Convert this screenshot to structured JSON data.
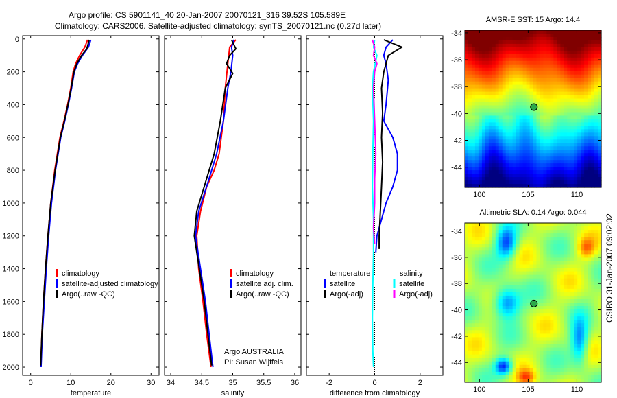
{
  "title": {
    "line1": "Argo profile: CS 5901141_40 20-Jan-2007 20070121_316 39.52S 105.589E",
    "line2": "Climatology: CARS2006. Satellite-adjusted climatology: synTS_20070121.nc (0.27d later)"
  },
  "colors": {
    "climatology": "#ff0000",
    "satellite": "#0000ff",
    "argo": "#000000",
    "sal_satellite": "#00ffff",
    "sal_argo": "#ff00ff"
  },
  "chart_data": [
    {
      "type": "line",
      "id": "temperature",
      "xlabel": "temperature",
      "ylabel": "",
      "xlim": [
        -2,
        32
      ],
      "ylim": [
        2050,
        -20
      ],
      "xticks": [
        0,
        10,
        20,
        30
      ],
      "xtick_labels": [
        "0",
        "10",
        "20",
        "30"
      ],
      "yticks": [
        0,
        200,
        400,
        600,
        800,
        1000,
        1200,
        1400,
        1600,
        1800,
        2000
      ],
      "ytick_labels": [
        "0",
        "200",
        "400",
        "600",
        "800",
        "1000",
        "1200",
        "1400",
        "1600",
        "1800",
        "2000"
      ],
      "legend": [
        "climatology",
        "satellite-adjusted climatology",
        "Argo(..raw -QC)"
      ],
      "series": [
        {
          "name": "climatology",
          "color_key": "climatology",
          "x": [
            14.2,
            13.5,
            12.2,
            11.2,
            10.6,
            10.0,
            9.2,
            8.3,
            7.3,
            6.0,
            5.0,
            4.3,
            3.7,
            3.2,
            2.8,
            2.5
          ],
          "y": [
            5,
            50,
            100,
            150,
            200,
            300,
            400,
            500,
            600,
            800,
            1000,
            1200,
            1400,
            1600,
            1800,
            2000
          ]
        },
        {
          "name": "satellite-adjusted climatology",
          "color_key": "satellite",
          "x": [
            15.0,
            14.4,
            12.9,
            11.7,
            10.9,
            10.2,
            9.4,
            8.5,
            7.5,
            6.2,
            5.2,
            4.5,
            3.9,
            3.4,
            2.9,
            2.6
          ],
          "y": [
            5,
            50,
            100,
            150,
            200,
            300,
            400,
            500,
            600,
            800,
            1000,
            1200,
            1400,
            1600,
            1800,
            2000
          ]
        },
        {
          "name": "Argo(..raw -QC)",
          "color_key": "argo",
          "x": [
            14.6,
            14.0,
            12.7,
            11.5,
            10.8,
            10.1,
            9.3,
            8.4,
            7.4,
            6.1,
            5.0,
            4.3,
            3.7,
            3.2,
            2.8,
            2.5
          ],
          "y": [
            5,
            60,
            100,
            150,
            200,
            300,
            400,
            500,
            600,
            800,
            1000,
            1200,
            1400,
            1600,
            1800,
            1990
          ]
        }
      ]
    },
    {
      "type": "line",
      "id": "salinity",
      "xlabel": "salinity",
      "ylabel": "",
      "xlim": [
        33.9,
        36.1
      ],
      "ylim": [
        2050,
        -20
      ],
      "xticks": [
        34,
        34.5,
        35,
        35.5,
        36
      ],
      "xtick_labels": [
        "34",
        "34.5",
        "35",
        "35.5",
        "36"
      ],
      "legend": [
        "climatology",
        "satellite adj. clim.",
        "Argo(..raw -QC)"
      ],
      "annotation": [
        "Argo AUSTRALIA",
        "PI: Susan Wijffels"
      ],
      "series": [
        {
          "name": "climatology",
          "color_key": "climatology",
          "x": [
            35.05,
            34.95,
            34.92,
            34.88,
            34.85,
            34.78,
            34.7,
            34.58,
            34.48,
            34.42,
            34.45,
            34.52,
            34.58,
            34.65
          ],
          "y": [
            5,
            50,
            150,
            300,
            500,
            700,
            800,
            900,
            1050,
            1200,
            1400,
            1600,
            1800,
            2000
          ]
        },
        {
          "name": "satellite adj. clim.",
          "color_key": "satellite",
          "x": [
            35.02,
            34.98,
            35.0,
            34.97,
            34.92,
            34.85,
            34.74,
            34.62,
            34.45,
            34.4,
            34.48,
            34.56,
            34.62,
            34.68
          ],
          "y": [
            5,
            50,
            100,
            200,
            300,
            500,
            700,
            850,
            1050,
            1200,
            1400,
            1600,
            1800,
            2000
          ]
        },
        {
          "name": "Argo(..raw -QC)",
          "color_key": "argo",
          "x": [
            34.98,
            35.05,
            34.95,
            34.9,
            35.0,
            34.88,
            34.8,
            34.7,
            34.58,
            34.42,
            34.38,
            34.46,
            34.54,
            34.6,
            34.66
          ],
          "y": [
            5,
            60,
            100,
            150,
            210,
            300,
            500,
            700,
            850,
            1050,
            1200,
            1400,
            1600,
            1800,
            1990
          ]
        }
      ]
    },
    {
      "type": "line",
      "id": "difference",
      "xlabel": "difference from climatology",
      "ylabel": "",
      "xlim": [
        -3,
        3
      ],
      "ylim": [
        2050,
        -20
      ],
      "xticks": [
        -2,
        0,
        2
      ],
      "xtick_labels": [
        "-2",
        "0",
        "2"
      ],
      "legend_headers": [
        "temperature",
        "salinity"
      ],
      "legend": [
        "satellite",
        "Argo(-adj)",
        "satellite",
        "Argo(-adj)"
      ],
      "series": [
        {
          "name": "temperature satellite",
          "color_key": "satellite",
          "x": [
            0.8,
            0.5,
            0.4,
            0.5,
            0.6,
            0.5,
            0.4,
            0.6,
            0.8,
            1.0,
            1.0,
            0.8,
            0.5,
            0.3,
            0.1,
            0.05
          ],
          "y": [
            5,
            50,
            100,
            150,
            250,
            400,
            500,
            550,
            600,
            700,
            800,
            900,
            1000,
            1100,
            1200,
            1300
          ]
        },
        {
          "name": "temperature Argo(-adj)",
          "color_key": "argo",
          "x": [
            0.4,
            1.2,
            0.6,
            0.4,
            0.3,
            0.35,
            0.3,
            0.35,
            0.3,
            0.25,
            0.2,
            0.2,
            0.2
          ],
          "y": [
            5,
            50,
            100,
            200,
            300,
            450,
            600,
            750,
            900,
            1050,
            1200,
            1250,
            1280
          ]
        },
        {
          "name": "salinity satellite",
          "color_key": "sal_satellite",
          "x": [
            0.0,
            -0.05,
            0.1,
            -0.05,
            -0.1,
            -0.05,
            -0.08,
            -0.1,
            -0.05,
            -0.05,
            -0.08,
            -0.1,
            -0.08,
            -0.05
          ],
          "y": [
            5,
            50,
            100,
            200,
            300,
            500,
            700,
            900,
            1100,
            1300,
            1500,
            1700,
            1900,
            2000
          ]
        },
        {
          "name": "salinity Argo(-adj)",
          "color_key": "sal_argo",
          "x": [
            -0.1,
            0.0,
            -0.05,
            0.1,
            0.0,
            -0.05,
            0.0,
            0.05,
            0.0,
            0.0,
            -0.05,
            0.0
          ],
          "y": [
            5,
            50,
            100,
            150,
            200,
            300,
            500,
            700,
            850,
            1000,
            1150,
            1250
          ]
        }
      ]
    },
    {
      "type": "heatmap",
      "id": "sst_map",
      "title": "AMSR-E SST: 15 Argo: 14.4",
      "xlim": [
        98.5,
        112.5
      ],
      "ylim": [
        -45.5,
        -33.8
      ],
      "xticks": [
        100,
        105,
        110
      ],
      "xtick_labels": [
        "100",
        "105",
        "110"
      ],
      "yticks": [
        -34,
        -36,
        -38,
        -40,
        -42,
        -44
      ],
      "ytick_labels": [
        "-34",
        "-36",
        "-38",
        "-40",
        "-42",
        "-44"
      ],
      "marker": {
        "lon": 105.589,
        "lat": -39.52
      },
      "field": "sst"
    },
    {
      "type": "heatmap",
      "id": "sla_map",
      "title": "Altimetric SLA: 0.14 Argo: 0.044",
      "xlim": [
        98.5,
        112.5
      ],
      "ylim": [
        -45.5,
        -33.4
      ],
      "xticks": [
        100,
        105,
        110
      ],
      "xtick_labels": [
        "100",
        "105",
        "110"
      ],
      "yticks": [
        -34,
        -36,
        -38,
        -40,
        -42,
        -44
      ],
      "ytick_labels": [
        "-34",
        "-36",
        "-38",
        "-40",
        "-42",
        "-44"
      ],
      "marker": {
        "lon": 105.589,
        "lat": -39.52
      },
      "field": "sla"
    }
  ],
  "side_label": "CSIRO 31-Jan-2007 09:02:02"
}
